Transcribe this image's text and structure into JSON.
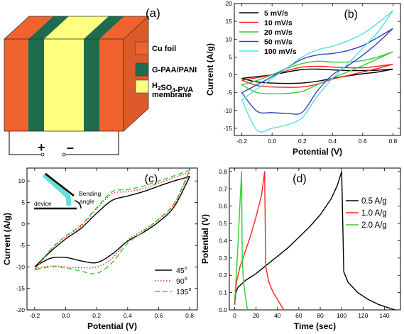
{
  "panel_a": {
    "label": "(a)",
    "legend": [
      {
        "label": "Cu foil",
        "color": "#f0622e"
      },
      {
        "label": "G-PAA/PANI",
        "color": "#1e6b4e"
      },
      {
        "label_prefix": "H",
        "label_sub": "2",
        "label_mid": "SO",
        "label_sub2": "4",
        "label_suffix": "-PVA",
        "label_line2": "membrane",
        "color": "#ffff80"
      }
    ],
    "plus": "+",
    "minus": "–"
  },
  "chart_data": [
    {
      "panel": "(b)",
      "type": "line",
      "xlabel": "Potential (V)",
      "ylabel": "Current (A/g)",
      "xlim": [
        -0.25,
        0.85
      ],
      "ylim": [
        -17,
        20
      ],
      "xticks": [
        -0.2,
        0.0,
        0.2,
        0.4,
        0.6,
        0.8
      ],
      "xtick_labels": [
        "-0.2",
        "0.0",
        "0.2",
        "0.4",
        "0.6",
        "0.8"
      ],
      "yticks": [
        -15,
        -10,
        -5,
        0,
        5,
        10,
        15,
        20
      ],
      "legend_position": "top-left",
      "series": [
        {
          "name": "5 mV/s",
          "color": "#000000",
          "style": "solid",
          "upper": [
            [
              -0.2,
              -1.0
            ],
            [
              -0.1,
              -0.5
            ],
            [
              0.0,
              0.0
            ],
            [
              0.1,
              0.8
            ],
            [
              0.2,
              1.5
            ],
            [
              0.3,
              1.6
            ],
            [
              0.4,
              1.4
            ],
            [
              0.5,
              1.2
            ],
            [
              0.6,
              1.2
            ],
            [
              0.7,
              1.3
            ],
            [
              0.8,
              1.6
            ]
          ],
          "lower": [
            [
              0.8,
              1.6
            ],
            [
              0.7,
              0.8
            ],
            [
              0.6,
              0.3
            ],
            [
              0.5,
              -0.3
            ],
            [
              0.4,
              -1.0
            ],
            [
              0.3,
              -1.8
            ],
            [
              0.2,
              -2.3
            ],
            [
              0.1,
              -2.4
            ],
            [
              0.0,
              -2.3
            ],
            [
              -0.1,
              -2.0
            ],
            [
              -0.2,
              -1.0
            ]
          ]
        },
        {
          "name": "10 mV/s",
          "color": "#ff2020",
          "style": "solid",
          "upper": [
            [
              -0.2,
              -1.5
            ],
            [
              -0.1,
              -0.8
            ],
            [
              0.0,
              0.0
            ],
            [
              0.1,
              1.2
            ],
            [
              0.2,
              2.2
            ],
            [
              0.3,
              2.4
            ],
            [
              0.4,
              2.2
            ],
            [
              0.5,
              2.0
            ],
            [
              0.6,
              2.0
            ],
            [
              0.7,
              2.4
            ],
            [
              0.8,
              3.0
            ]
          ],
          "lower": [
            [
              0.8,
              3.0
            ],
            [
              0.7,
              1.8
            ],
            [
              0.6,
              0.8
            ],
            [
              0.5,
              -0.2
            ],
            [
              0.4,
              -1.2
            ],
            [
              0.3,
              -2.6
            ],
            [
              0.2,
              -3.4
            ],
            [
              0.1,
              -3.5
            ],
            [
              0.0,
              -3.4
            ],
            [
              -0.1,
              -3.0
            ],
            [
              -0.2,
              -1.5
            ]
          ]
        },
        {
          "name": "20 mV/s",
          "color": "#33cc33",
          "style": "solid",
          "upper": [
            [
              -0.2,
              -2.8
            ],
            [
              -0.1,
              -1.6
            ],
            [
              0.0,
              0.0
            ],
            [
              0.1,
              1.8
            ],
            [
              0.2,
              3.2
            ],
            [
              0.3,
              3.8
            ],
            [
              0.4,
              3.6
            ],
            [
              0.5,
              3.6
            ],
            [
              0.6,
              4.0
            ],
            [
              0.7,
              5.0
            ],
            [
              0.8,
              6.5
            ]
          ],
          "lower": [
            [
              0.8,
              6.5
            ],
            [
              0.7,
              4.5
            ],
            [
              0.6,
              2.6
            ],
            [
              0.5,
              0.8
            ],
            [
              0.4,
              -0.8
            ],
            [
              0.3,
              -2.8
            ],
            [
              0.2,
              -4.6
            ],
            [
              0.1,
              -5.2
            ],
            [
              0.0,
              -5.3
            ],
            [
              -0.1,
              -5.0
            ],
            [
              -0.2,
              -2.8
            ]
          ]
        },
        {
          "name": "50 mV/s",
          "color": "#3344bb",
          "style": "solid",
          "upper": [
            [
              -0.2,
              -5.0
            ],
            [
              -0.1,
              -2.8
            ],
            [
              0.0,
              -0.5
            ],
            [
              0.1,
              2.0
            ],
            [
              0.2,
              4.4
            ],
            [
              0.3,
              5.6
            ],
            [
              0.4,
              6.0
            ],
            [
              0.5,
              6.8
            ],
            [
              0.6,
              8.2
            ],
            [
              0.7,
              10.5
            ],
            [
              0.8,
              13.0
            ]
          ],
          "lower": [
            [
              0.8,
              13.0
            ],
            [
              0.7,
              9.0
            ],
            [
              0.6,
              5.5
            ],
            [
              0.5,
              2.5
            ],
            [
              0.4,
              0.0
            ],
            [
              0.3,
              -4.5
            ],
            [
              0.2,
              -10.5
            ],
            [
              0.1,
              -10.8
            ],
            [
              0.0,
              -10.6
            ],
            [
              -0.1,
              -10.2
            ],
            [
              -0.2,
              -5.0
            ]
          ]
        },
        {
          "name": "100 mV/s",
          "color": "#55e0e0",
          "style": "solid",
          "upper": [
            [
              -0.2,
              -7.0
            ],
            [
              -0.1,
              -4.0
            ],
            [
              0.0,
              -1.0
            ],
            [
              0.1,
              2.0
            ],
            [
              0.2,
              5.0
            ],
            [
              0.3,
              7.0
            ],
            [
              0.4,
              8.0
            ],
            [
              0.5,
              9.5
            ],
            [
              0.6,
              11.5
            ],
            [
              0.7,
              14.5
            ],
            [
              0.8,
              18.0
            ]
          ],
          "lower": [
            [
              0.8,
              18.0
            ],
            [
              0.7,
              12.0
            ],
            [
              0.6,
              7.5
            ],
            [
              0.5,
              3.0
            ],
            [
              0.4,
              -1.0
            ],
            [
              0.3,
              -6.0
            ],
            [
              0.2,
              -12.0
            ],
            [
              0.1,
              -14.0
            ],
            [
              0.0,
              -15.0
            ],
            [
              -0.1,
              -15.5
            ],
            [
              -0.2,
              -7.0
            ]
          ]
        }
      ]
    },
    {
      "panel": "(c)",
      "type": "line",
      "xlabel": "Potential (V)",
      "ylabel": "Current (A/g)",
      "xlim": [
        -0.25,
        0.85
      ],
      "ylim": [
        -20,
        13
      ],
      "xticks": [
        -0.2,
        0.0,
        0.2,
        0.4,
        0.6,
        0.8
      ],
      "xtick_labels": [
        "-0.2",
        "0.0",
        "0.2",
        "0.4",
        "0.6",
        "0.8"
      ],
      "yticks": [
        -20,
        -15,
        -10,
        -5,
        0,
        5,
        10
      ],
      "legend_position": "bottom-right",
      "inset": {
        "device_label": "device",
        "angle_label_line1": "Bending",
        "angle_label_line2": "angle"
      },
      "series": [
        {
          "name": "45",
          "color": "#000000",
          "style": "solid",
          "upper": [
            [
              -0.2,
              -10.0
            ],
            [
              -0.1,
              -6.5
            ],
            [
              0.0,
              -3.5
            ],
            [
              0.1,
              -1.0
            ],
            [
              0.2,
              2.5
            ],
            [
              0.3,
              5.5
            ],
            [
              0.4,
              6.5
            ],
            [
              0.5,
              7.5
            ],
            [
              0.6,
              8.8
            ],
            [
              0.7,
              10.0
            ],
            [
              0.8,
              11.0
            ]
          ],
          "lower": [
            [
              0.8,
              11.0
            ],
            [
              0.7,
              4.0
            ],
            [
              0.6,
              0.5
            ],
            [
              0.5,
              -2.0
            ],
            [
              0.4,
              -4.0
            ],
            [
              0.3,
              -7.0
            ],
            [
              0.2,
              -9.0
            ],
            [
              0.1,
              -8.6
            ],
            [
              0.0,
              -7.8
            ],
            [
              -0.1,
              -8.0
            ],
            [
              -0.2,
              -10.0
            ]
          ]
        },
        {
          "name": "90",
          "color": "#ff2020",
          "style": "dot",
          "upper": [
            [
              -0.2,
              -10.5
            ],
            [
              -0.1,
              -6.2
            ],
            [
              0.0,
              -3.0
            ],
            [
              0.1,
              -0.5
            ],
            [
              0.2,
              3.5
            ],
            [
              0.3,
              7.0
            ],
            [
              0.4,
              7.5
            ],
            [
              0.5,
              8.2
            ],
            [
              0.6,
              9.5
            ],
            [
              0.7,
              10.8
            ],
            [
              0.8,
              12.0
            ]
          ],
          "lower": [
            [
              0.8,
              12.0
            ],
            [
              0.7,
              4.5
            ],
            [
              0.6,
              1.0
            ],
            [
              0.5,
              -1.5
            ],
            [
              0.4,
              -3.8
            ],
            [
              0.3,
              -8.0
            ],
            [
              0.2,
              -10.0
            ],
            [
              0.1,
              -10.2
            ],
            [
              0.0,
              -10.0
            ],
            [
              -0.1,
              -9.8
            ],
            [
              -0.2,
              -10.5
            ]
          ]
        },
        {
          "name": "135",
          "color": "#33cc33",
          "style": "dash",
          "upper": [
            [
              -0.2,
              -10.8
            ],
            [
              -0.1,
              -6.0
            ],
            [
              0.0,
              -2.8
            ],
            [
              0.1,
              -0.2
            ],
            [
              0.2,
              3.8
            ],
            [
              0.3,
              7.5
            ],
            [
              0.4,
              8.0
            ],
            [
              0.5,
              8.8
            ],
            [
              0.6,
              10.0
            ],
            [
              0.7,
              11.2
            ],
            [
              0.8,
              12.5
            ]
          ],
          "lower": [
            [
              0.8,
              12.5
            ],
            [
              0.7,
              4.8
            ],
            [
              0.6,
              1.2
            ],
            [
              0.5,
              -1.8
            ],
            [
              0.4,
              -4.5
            ],
            [
              0.3,
              -9.0
            ],
            [
              0.2,
              -11.5
            ],
            [
              0.1,
              -11.0
            ],
            [
              0.0,
              -10.2
            ],
            [
              -0.1,
              -10.0
            ],
            [
              -0.2,
              -10.8
            ]
          ]
        }
      ]
    },
    {
      "panel": "(d)",
      "type": "line",
      "xlabel": "Time (sec)",
      "ylabel": "Potential (V)",
      "xlim": [
        -5,
        155
      ],
      "ylim": [
        0,
        0.82
      ],
      "xticks": [
        0,
        20,
        40,
        60,
        80,
        100,
        120,
        140
      ],
      "xtick_labels": [
        "0",
        "20",
        "40",
        "60",
        "80",
        "100",
        "120",
        "140"
      ],
      "yticks": [
        0.0,
        0.1,
        0.2,
        0.3,
        0.4,
        0.5,
        0.6,
        0.7,
        0.8
      ],
      "ytick_labels": [
        "0.0",
        "0.1",
        "0.2",
        "0.3",
        "0.4",
        "0.5",
        "0.6",
        "0.7",
        "0.8"
      ],
      "legend_position": "top-right",
      "series": [
        {
          "name": "0.5 A/g",
          "color": "#000000",
          "style": "solid",
          "points": [
            [
              0,
              0.03
            ],
            [
              1,
              0.1
            ],
            [
              3,
              0.13
            ],
            [
              10,
              0.17
            ],
            [
              20,
              0.21
            ],
            [
              30,
              0.26
            ],
            [
              40,
              0.31
            ],
            [
              50,
              0.36
            ],
            [
              60,
              0.42
            ],
            [
              70,
              0.48
            ],
            [
              80,
              0.55
            ],
            [
              90,
              0.64
            ],
            [
              96,
              0.72
            ],
            [
              100,
              0.8
            ],
            [
              102,
              0.22
            ],
            [
              106,
              0.16
            ],
            [
              115,
              0.1
            ],
            [
              125,
              0.06
            ],
            [
              135,
              0.03
            ],
            [
              150,
              0.0
            ]
          ]
        },
        {
          "name": "1.0 A/g",
          "color": "#ff2020",
          "style": "solid",
          "points": [
            [
              0,
              0.03
            ],
            [
              0.5,
              0.1
            ],
            [
              2,
              0.17
            ],
            [
              5,
              0.25
            ],
            [
              10,
              0.34
            ],
            [
              15,
              0.43
            ],
            [
              20,
              0.54
            ],
            [
              25,
              0.66
            ],
            [
              28,
              0.8
            ],
            [
              29,
              0.25
            ],
            [
              32,
              0.16
            ],
            [
              36,
              0.1
            ],
            [
              41,
              0.05
            ],
            [
              46,
              0.0
            ]
          ]
        },
        {
          "name": "2.0 A/g",
          "color": "#33cc33",
          "style": "solid",
          "points": [
            [
              0,
              0.05
            ],
            [
              1,
              0.15
            ],
            [
              2,
              0.25
            ],
            [
              3,
              0.37
            ],
            [
              4,
              0.5
            ],
            [
              5,
              0.63
            ],
            [
              6.5,
              0.8
            ],
            [
              7,
              0.3
            ],
            [
              8,
              0.18
            ],
            [
              10,
              0.08
            ],
            [
              12,
              0.0
            ]
          ]
        }
      ]
    }
  ]
}
